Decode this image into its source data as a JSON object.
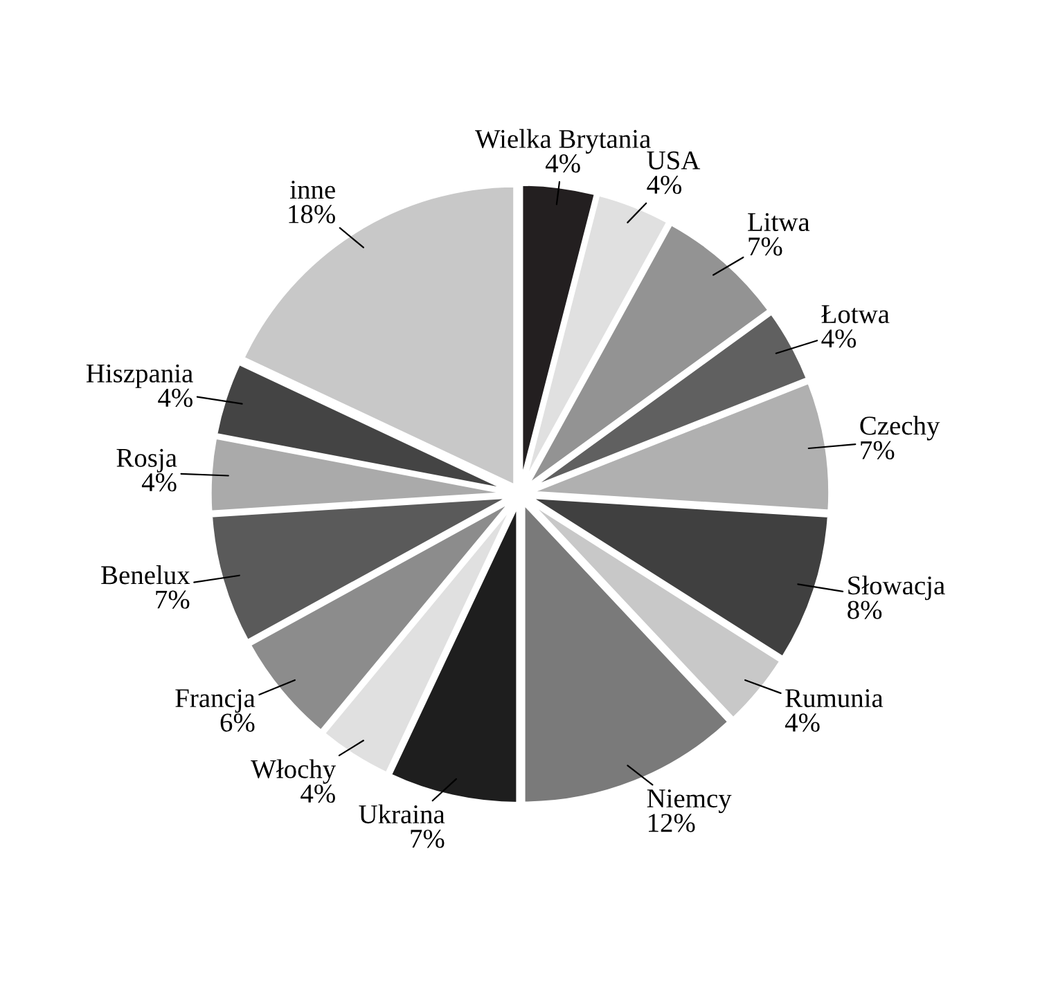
{
  "chart_data": {
    "type": "pie",
    "categories": [
      "Wielka Brytania",
      "USA",
      "Litwa",
      "Łotwa",
      "Czechy",
      "Słowacja",
      "Rumunia",
      "Niemcy",
      "Ukraina",
      "Włochy",
      "Francja",
      "Benelux",
      "Rosja",
      "Hiszpania",
      "inne"
    ],
    "values": [
      4,
      4,
      7,
      4,
      7,
      8,
      4,
      12,
      7,
      4,
      6,
      7,
      4,
      4,
      18
    ],
    "value_labels": [
      "4%",
      "4%",
      "7%",
      "4%",
      "7%",
      "8%",
      "4%",
      "12%",
      "7%",
      "4%",
      "6%",
      "7%",
      "4%",
      "4%",
      "18%"
    ],
    "colors": [
      "#231f20",
      "#e0e0e0",
      "#939393",
      "#606060",
      "#b0b0b0",
      "#404040",
      "#c8c8c8",
      "#7a7a7a",
      "#1e1e1e",
      "#e0e0e0",
      "#8c8c8c",
      "#5a5a5a",
      "#aaaaaa",
      "#444444",
      "#c8c8c8"
    ]
  }
}
